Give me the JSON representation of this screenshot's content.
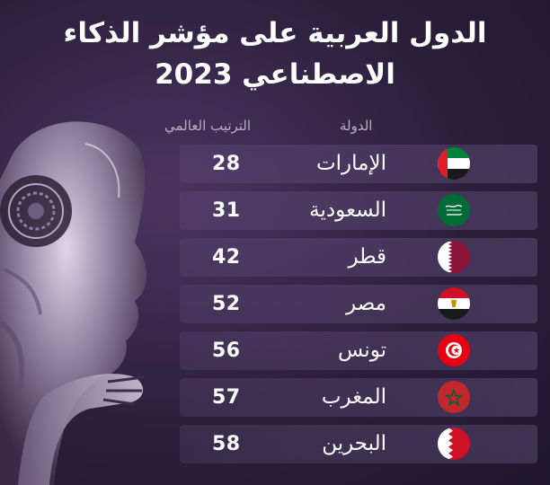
{
  "title": {
    "line1": "الدول العربية على مؤشر الذكاء",
    "line2": "الاصطناعي 2023"
  },
  "headers": {
    "country": "الدولة",
    "rank": "الترتيب العالمي"
  },
  "rows": [
    {
      "country": "الإمارات",
      "rank": "28",
      "flag_icon": "uae-flag-icon"
    },
    {
      "country": "السعودية",
      "rank": "31",
      "flag_icon": "saudi-flag-icon"
    },
    {
      "country": "قطر",
      "rank": "42",
      "flag_icon": "qatar-flag-icon"
    },
    {
      "country": "مصر",
      "rank": "52",
      "flag_icon": "egypt-flag-icon"
    },
    {
      "country": "تونس",
      "rank": "56",
      "flag_icon": "tunisia-flag-icon"
    },
    {
      "country": "المغرب",
      "rank": "57",
      "flag_icon": "morocco-flag-icon"
    },
    {
      "country": "البحرين",
      "rank": "58",
      "flag_icon": "bahrain-flag-icon"
    }
  ],
  "colors": {
    "background": "#2c1f3c",
    "row_band": "#4a3a5e",
    "text": "#ffffff",
    "header_text": "#b9aec6"
  }
}
